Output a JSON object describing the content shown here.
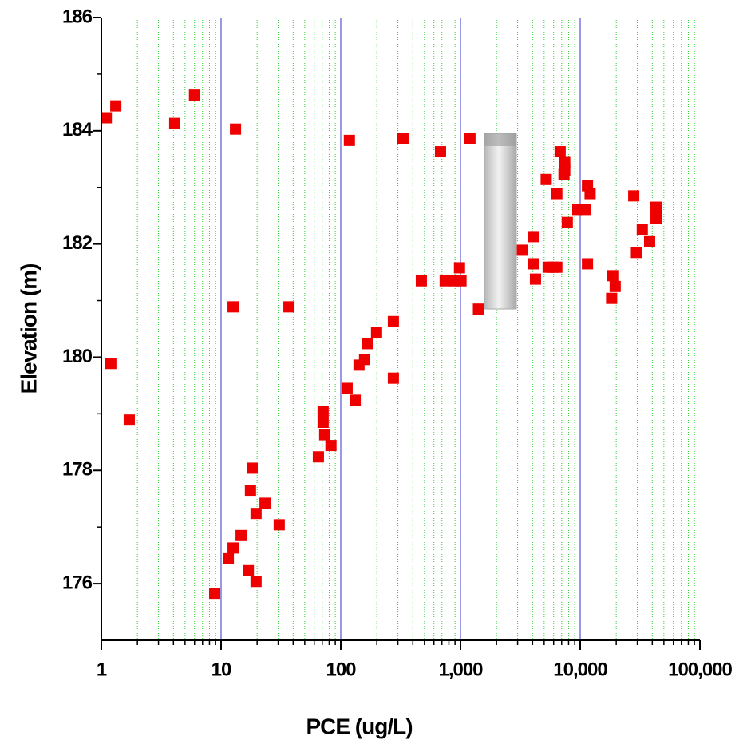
{
  "chart_data": {
    "type": "scatter",
    "x_label": "PCE (ug/L)",
    "y_label": "Elevation (m)",
    "xscale": "log",
    "color": "#ee0000",
    "xlim": [
      1,
      100000
    ],
    "xticks": [
      1,
      10,
      100,
      {
        "value": 1000,
        "label": "1,000"
      },
      {
        "value": 10000,
        "label": "10,000"
      },
      {
        "value": 100000,
        "label": "100,000"
      }
    ],
    "ylim": [
      175,
      186
    ],
    "yticks": [
      176,
      178,
      180,
      182,
      184,
      186
    ],
    "grid": true,
    "x": [
      1.1,
      1.32,
      4.1,
      6.0,
      13.2,
      1.2,
      1.71,
      12.6,
      36.9,
      8.85,
      118,
      331,
      681,
      1200,
      18.2,
      17.6,
      23.3,
      19.6,
      30.6,
      14.7,
      12.6,
      11.5,
      16.9,
      19.6,
      71.2,
      71.2,
      73.4,
      82.8,
      65,
      113,
      132,
      142,
      158,
      166,
      199,
      275,
      275,
      471,
      745,
      895,
      1010,
      981,
      1413,
      3290,
      4050,
      4050,
      4230,
      5400,
      5930,
      6380,
      5200,
      6380,
      6800,
      7430,
      7430,
      7320,
      7800,
      9550,
      11100,
      11500,
      12100,
      11500,
      18700,
      19600,
      18300,
      28000,
      29500,
      33000,
      38000,
      43000,
      43000
    ],
    "y": [
      184.23,
      184.44,
      184.13,
      184.63,
      184.03,
      179.89,
      178.89,
      180.89,
      180.89,
      175.83,
      183.83,
      183.87,
      183.63,
      183.87,
      178.04,
      177.65,
      177.42,
      177.24,
      177.04,
      176.85,
      176.63,
      176.44,
      176.23,
      176.04,
      179.04,
      178.85,
      178.63,
      178.44,
      178.24,
      179.45,
      179.24,
      179.86,
      179.96,
      180.24,
      180.44,
      180.63,
      179.63,
      181.35,
      181.35,
      181.35,
      181.35,
      181.58,
      180.85,
      181.89,
      182.13,
      181.65,
      181.38,
      181.59,
      181.59,
      181.59,
      183.14,
      182.89,
      183.63,
      183.44,
      183.3,
      183.23,
      182.38,
      182.61,
      182.61,
      183.03,
      182.89,
      181.65,
      181.44,
      181.25,
      181.04,
      182.85,
      181.85,
      182.25,
      182.04,
      182.65,
      182.46
    ]
  }
}
